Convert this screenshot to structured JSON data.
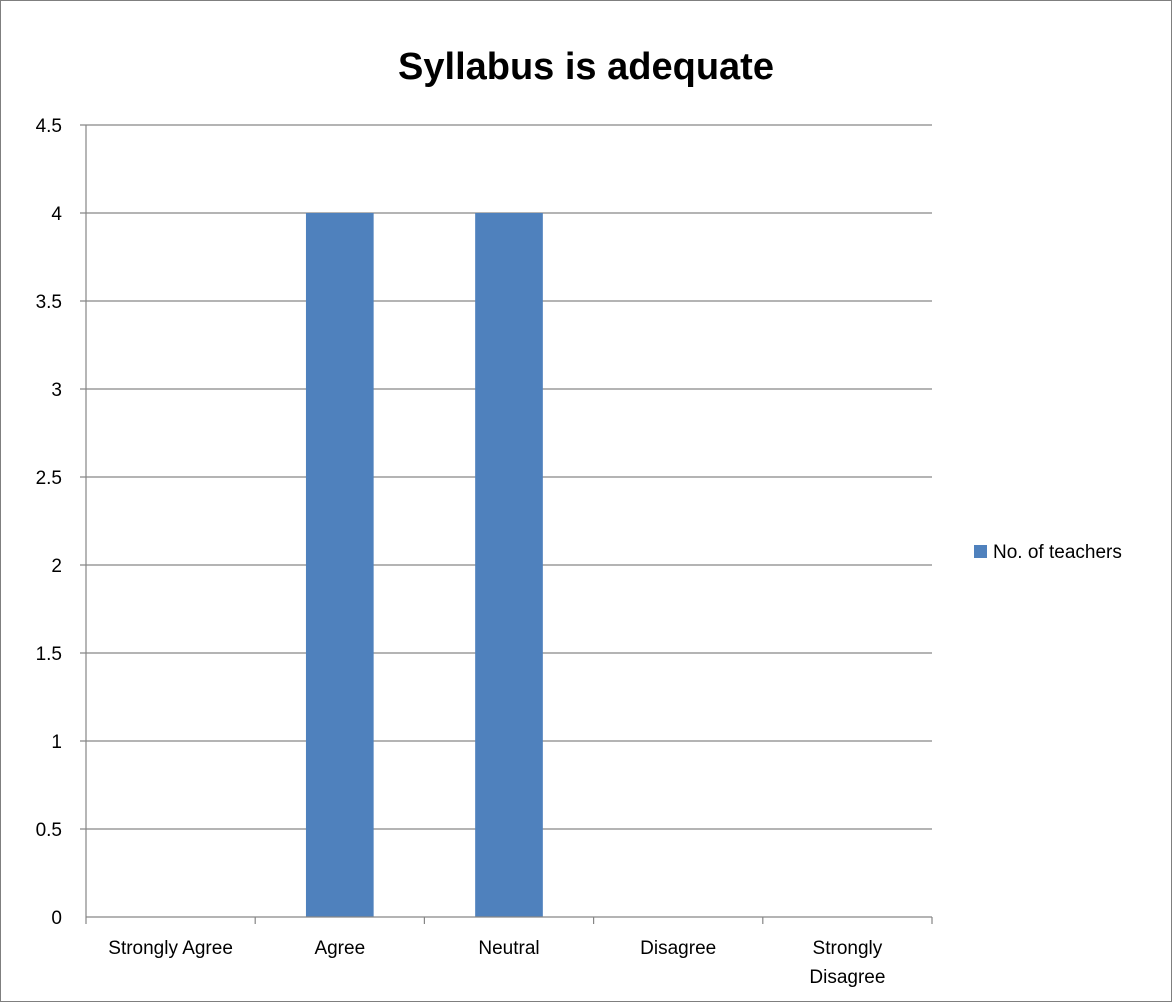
{
  "chart_data": {
    "type": "bar",
    "title": "Syllabus is adequate",
    "xlabel": "",
    "ylabel": "",
    "categories": [
      "Strongly Agree",
      "Agree",
      "Neutral",
      "Disagree",
      "Strongly Disagree"
    ],
    "series": [
      {
        "name": "No. of teachers",
        "values": [
          0,
          4,
          4,
          0,
          0
        ],
        "color": "#4f81bd"
      }
    ],
    "ylim": [
      0,
      4.5
    ],
    "yticks": [
      "0",
      "0.5",
      "1",
      "1.5",
      "2",
      "2.5",
      "3",
      "3.5",
      "4",
      "4.5"
    ],
    "grid": true,
    "legend_position": "right"
  }
}
